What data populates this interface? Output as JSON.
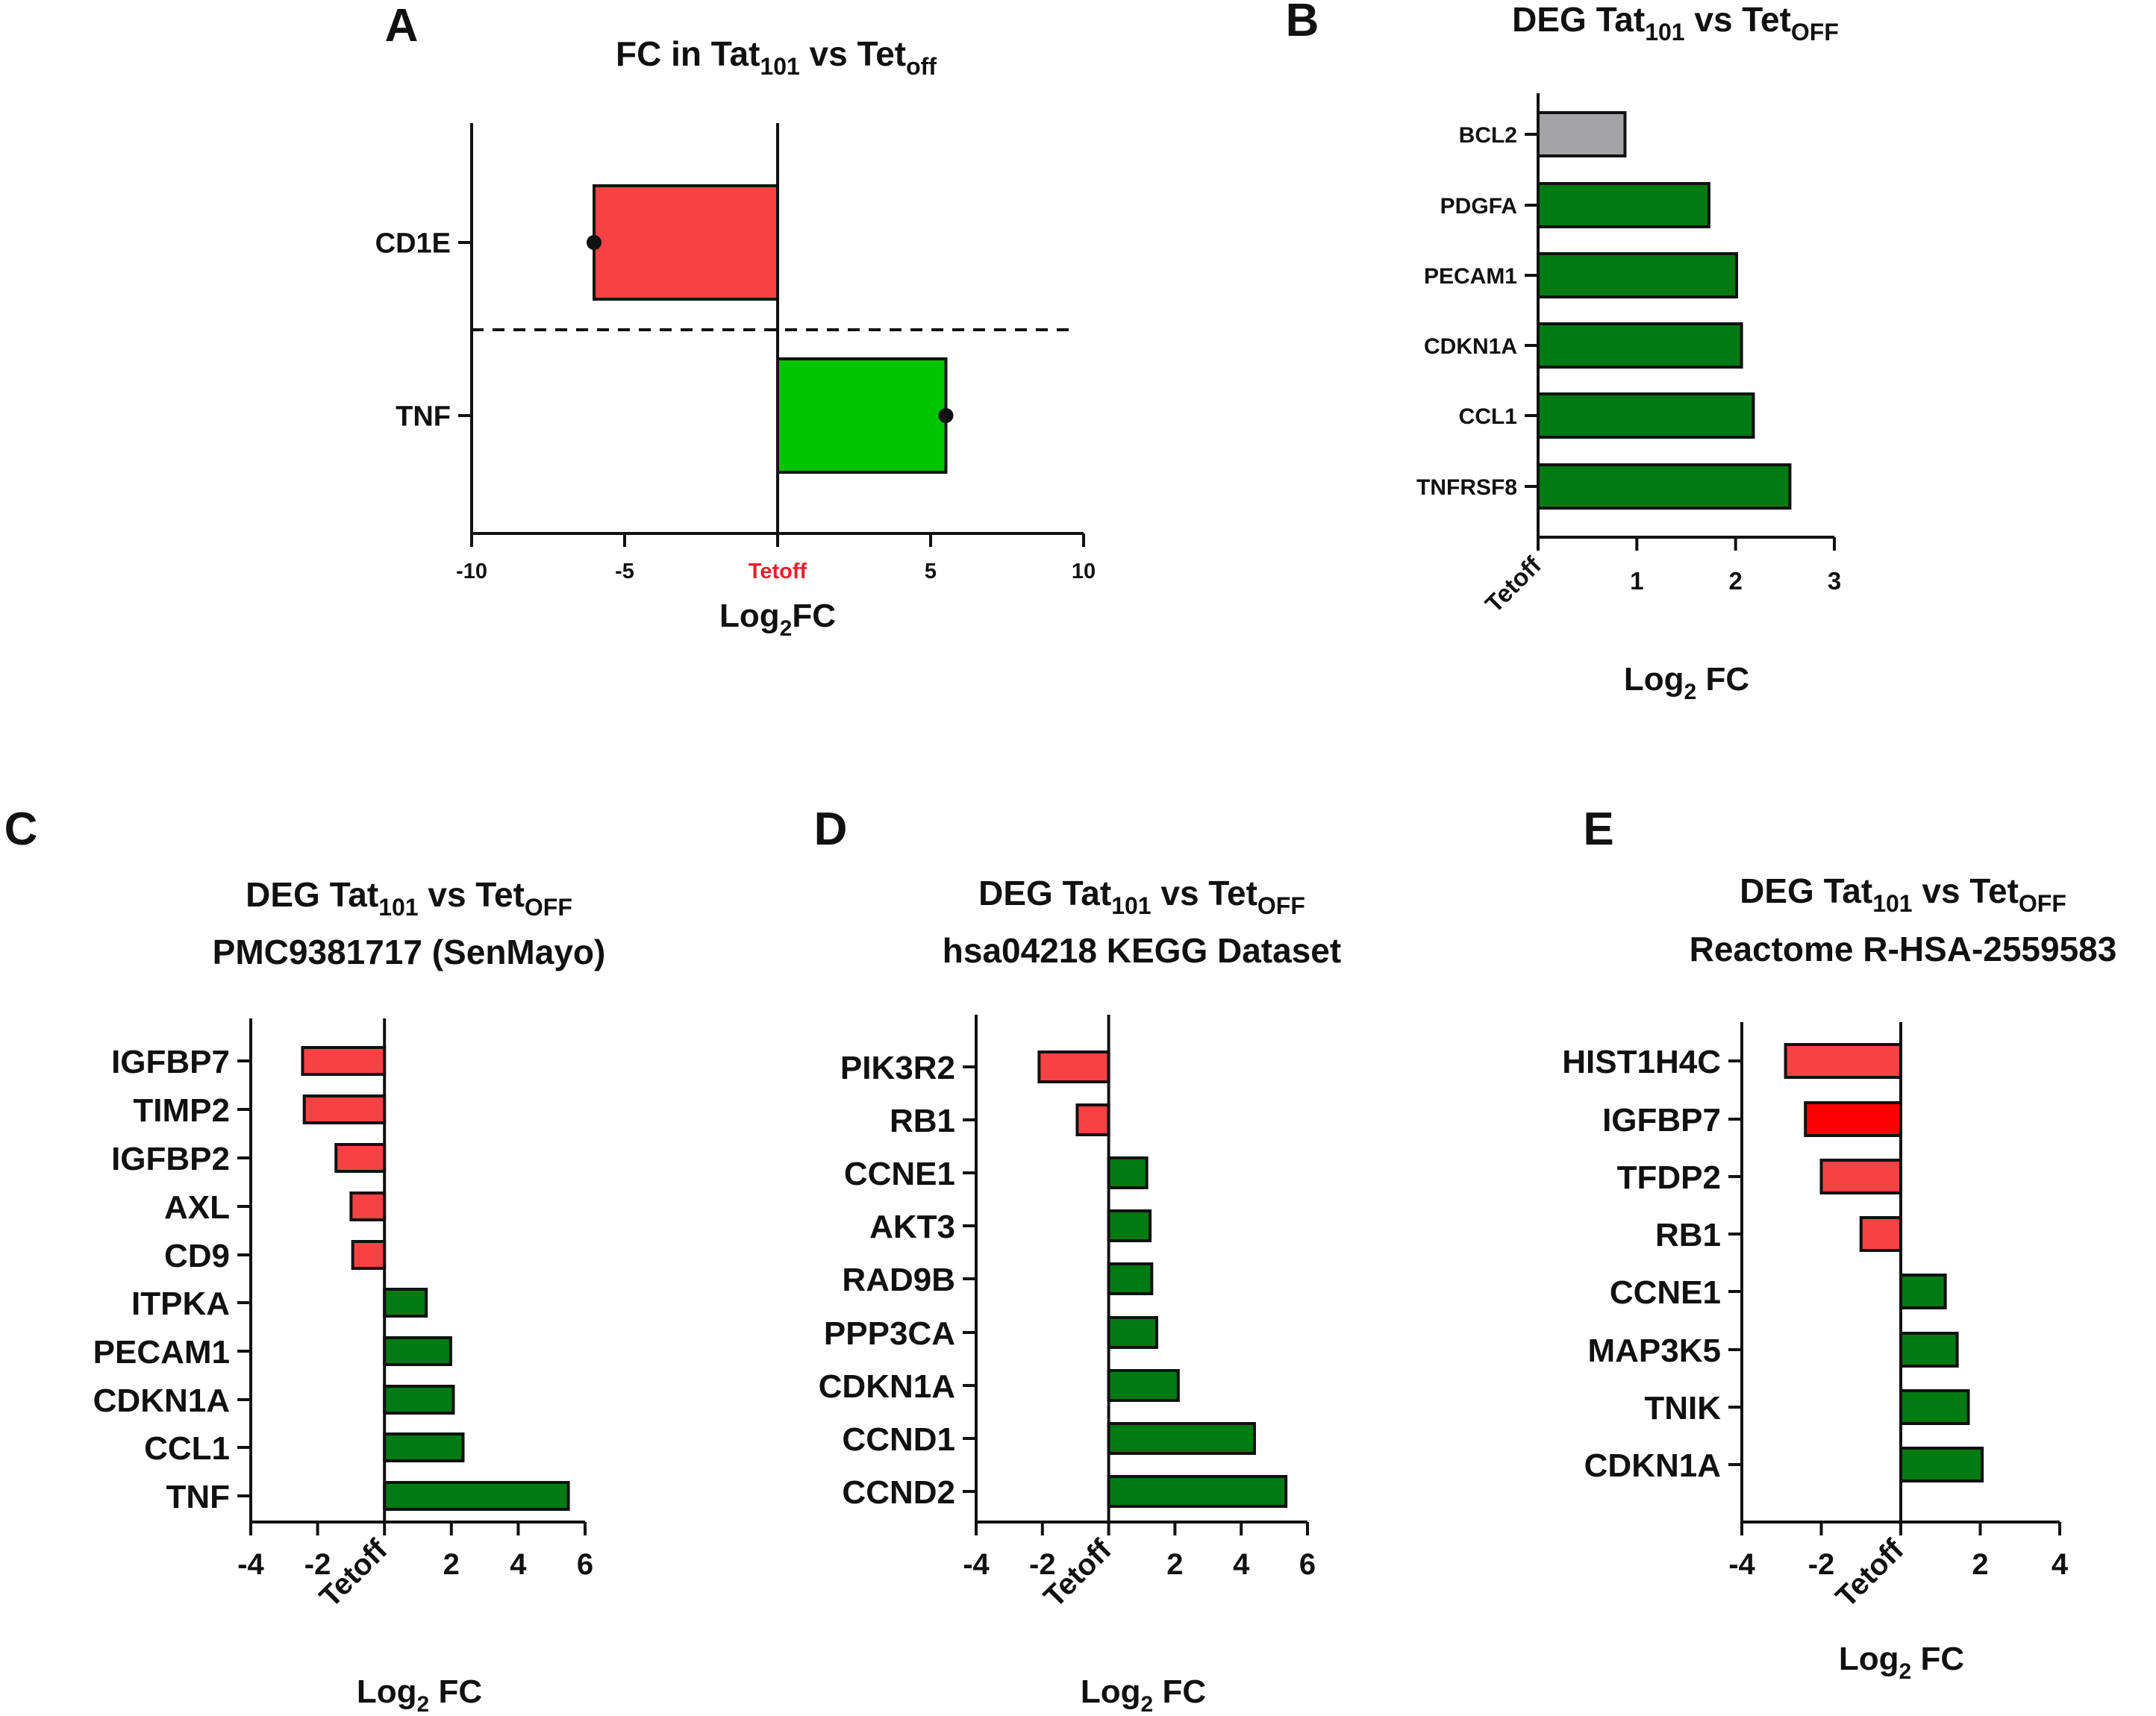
{
  "chart_data": [
    {
      "panel": "A",
      "type": "bar",
      "orientation": "horizontal",
      "title_main": "FC in Tat",
      "title_sub": "101",
      "title_vs": " vs Tet",
      "title_sub2": "off",
      "xlabel_main": "Log",
      "xlabel_sub": "2",
      "xlabel_rest": "FC",
      "xlim": [
        -10,
        10
      ],
      "xticks": [
        "-10",
        "-5",
        "Tetoff",
        "5",
        "10"
      ],
      "tick_values": [
        -10,
        -5,
        0,
        5,
        10
      ],
      "zero_label_color": "#e8202a",
      "categories": [
        "CD1E",
        "TNF"
      ],
      "values": [
        -6,
        5.5
      ],
      "colors": [
        "#f74245",
        "#00c400"
      ],
      "divider": "dashed"
    },
    {
      "panel": "B",
      "type": "bar",
      "orientation": "horizontal",
      "title_main": "DEG Tat",
      "title_sub": "101",
      "title_vs": " vs Tet",
      "title_sub2": "OFF",
      "xlabel_main": "Log",
      "xlabel_sub": "2",
      "xlabel_rest": " FC",
      "xlim": [
        0,
        3
      ],
      "xticks": [
        "Tetoff",
        "1",
        "2",
        "3"
      ],
      "tick_values": [
        0,
        1,
        2,
        3
      ],
      "categories": [
        "BCL2",
        "PDGFA",
        "PECAM1",
        "CDKN1A",
        "CCL1",
        "TNFRSF8"
      ],
      "values": [
        0.88,
        1.73,
        2.01,
        2.06,
        2.18,
        2.55
      ],
      "colors": [
        "#a3a3a6",
        "#007a12",
        "#007a12",
        "#007a12",
        "#007a12",
        "#007a12"
      ]
    },
    {
      "panel": "C",
      "type": "bar",
      "orientation": "horizontal",
      "title_main": "DEG Tat",
      "title_sub": "101",
      "title_vs": " vs Tet",
      "title_sub2": "OFF",
      "title_line2": "PMC9381717 (SenMayo)",
      "xlabel_main": "Log",
      "xlabel_sub": "2",
      "xlabel_rest": " FC",
      "xlim": [
        -4,
        6
      ],
      "xticks": [
        "-4",
        "-2",
        "Tetoff",
        "2",
        "4",
        "6"
      ],
      "tick_values": [
        -4,
        -2,
        0,
        2,
        4,
        6
      ],
      "categories": [
        "IGFBP7",
        "TIMP2",
        "IGFBP2",
        "AXL",
        "CD9",
        "ITPKA",
        "PECAM1",
        "CDKN1A",
        "CCL1",
        "TNF"
      ],
      "values": [
        -2.45,
        -2.4,
        -1.45,
        -1.0,
        -0.95,
        1.25,
        1.98,
        2.06,
        2.35,
        5.5
      ],
      "colors": [
        "#f74245",
        "#f74245",
        "#f74245",
        "#f74245",
        "#f74245",
        "#007a12",
        "#007a12",
        "#007a12",
        "#007a12",
        "#007a12"
      ]
    },
    {
      "panel": "D",
      "type": "bar",
      "orientation": "horizontal",
      "title_main": "DEG Tat",
      "title_sub": "101",
      "title_vs": " vs Tet",
      "title_sub2": "OFF",
      "title_line2": "hsa04218 KEGG Dataset",
      "xlabel_main": "Log",
      "xlabel_sub": "2",
      "xlabel_rest": " FC",
      "xlim": [
        -4,
        6
      ],
      "xticks": [
        "-4",
        "-2",
        "Tetoff",
        "2",
        "4",
        "6"
      ],
      "tick_values": [
        -4,
        -2,
        0,
        2,
        4,
        6
      ],
      "categories": [
        "PIK3R2",
        "RB1",
        "CCNE1",
        "AKT3",
        "RAD9B",
        "PPP3CA",
        "CDKN1A",
        "CCND1",
        "CCND2"
      ],
      "values": [
        -2.1,
        -0.95,
        1.15,
        1.25,
        1.3,
        1.45,
        2.1,
        4.4,
        5.35
      ],
      "colors": [
        "#f74245",
        "#f74245",
        "#007a12",
        "#007a12",
        "#007a12",
        "#007a12",
        "#007a12",
        "#007a12",
        "#007a12"
      ]
    },
    {
      "panel": "E",
      "type": "bar",
      "orientation": "horizontal",
      "title_main": "DEG Tat",
      "title_sub": "101",
      "title_vs": " vs Tet",
      "title_sub2": "OFF",
      "title_line2": "Reactome R-HSA-2559583",
      "xlabel_main": "Log",
      "xlabel_sub": "2",
      "xlabel_rest": " FC",
      "xlim": [
        -4,
        4
      ],
      "xticks": [
        "-4",
        "-2",
        "Tetoff",
        "2",
        "4"
      ],
      "tick_values": [
        -4,
        -2,
        0,
        2,
        4
      ],
      "categories": [
        "HIST1H4C",
        "IGFBP7",
        "TFDP2",
        "RB1",
        "CCNE1",
        "MAP3K5",
        "TNIK",
        "CDKN1A"
      ],
      "values": [
        -2.9,
        -2.4,
        -2.0,
        -1.0,
        1.12,
        1.42,
        1.7,
        2.05
      ],
      "colors": [
        "#f74245",
        "#ff0000",
        "#f74245",
        "#f74245",
        "#007a12",
        "#007a12",
        "#007a12",
        "#007a12"
      ]
    }
  ]
}
